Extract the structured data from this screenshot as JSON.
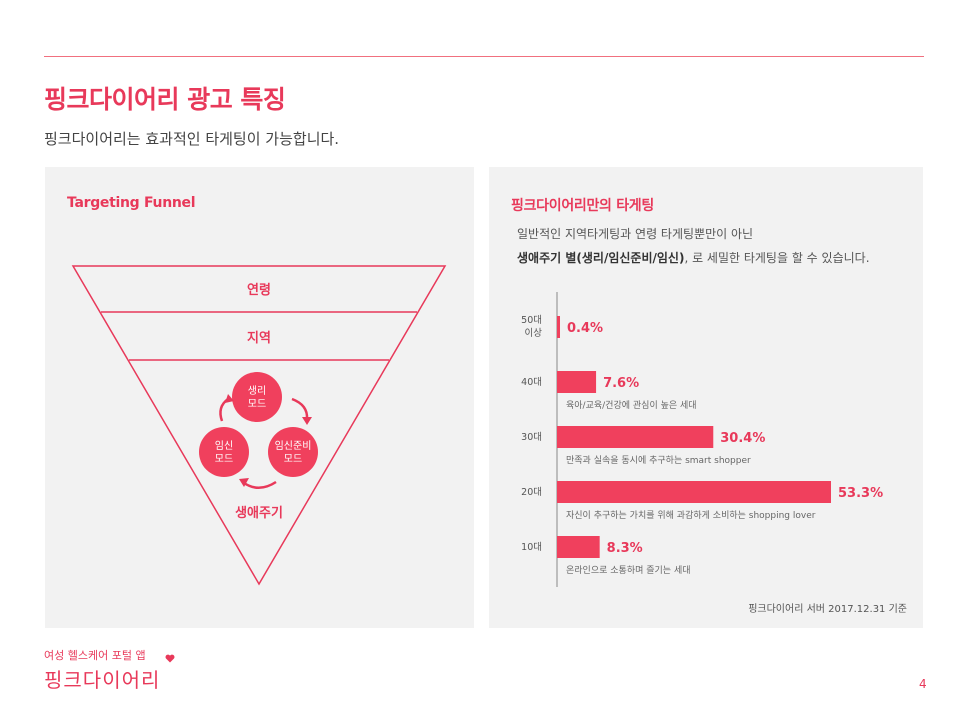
{
  "header": {
    "title": "핑크다이어리 광고 특징",
    "subtitle": "핑크다이어리는 효과적인 타게팅이 가능합니다."
  },
  "funnel_panel": {
    "title": "Targeting Funnel",
    "levels": [
      "연령",
      "지역",
      "생애주기"
    ],
    "cycle": [
      {
        "line1": "생리",
        "line2": "모드"
      },
      {
        "line1": "임신",
        "line2": "모드"
      },
      {
        "line1": "임신준비",
        "line2": "모드"
      }
    ]
  },
  "targeting_panel": {
    "title": "핑크다이어리만의 타게팅",
    "desc_line1": "일반적인 지역타게팅과 연령 타게팅뿐만이 아닌",
    "desc_line2_bold": "생애주기 별(생리/임신준비/임신)",
    "desc_line2_rest": ", 로 세밀한 타게팅을 할 수 있습니다.",
    "source": "핑크다이어리 서버  2017.12.31 기준"
  },
  "chart_data": {
    "type": "bar",
    "orientation": "horizontal",
    "categories": [
      "50대 이상",
      "40대",
      "30대",
      "20대",
      "10대"
    ],
    "category_lines": [
      [
        "50대",
        "이상"
      ],
      [
        "40대"
      ],
      [
        "30대"
      ],
      [
        "20대"
      ],
      [
        "10대"
      ]
    ],
    "values": [
      0.4,
      7.6,
      30.4,
      53.3,
      8.3
    ],
    "value_labels": [
      "0.4%",
      "7.6%",
      "30.4%",
      "53.3%",
      "8.3%"
    ],
    "annotations": [
      "",
      "육아/교육/건강에 관심이 높은 세대",
      "만족과 실속을 동시에 추구하는 smart shopper",
      "자신이 추구하는 가치를 위해 과감하게 소비하는 shopping lover",
      "온라인으로 소통하며 즐기는 세대"
    ],
    "unit": "%",
    "colors": {
      "bar": "#f0405d"
    }
  },
  "footer": {
    "tagline": "여성 헬스케어 포털 앱",
    "brand": "핑크다이어리",
    "page": "4"
  },
  "colors": {
    "accent": "#e8395a",
    "panel_bg": "#f2f2f2"
  }
}
